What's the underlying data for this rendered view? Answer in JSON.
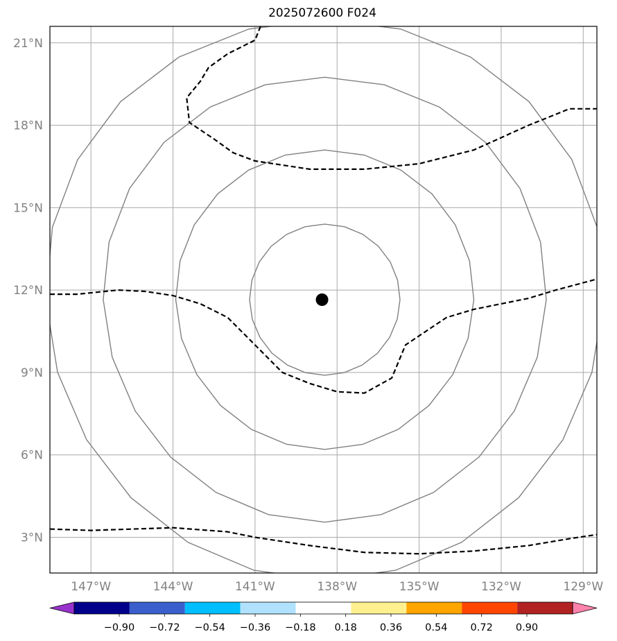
{
  "title": "2025072600 F024",
  "map": {
    "lon_range": [
      -148.5,
      -128.5
    ],
    "lat_range": [
      1.7,
      21.6
    ],
    "gridlines": {
      "lon": [
        -147,
        -144,
        -141,
        -138,
        -135,
        -132,
        -129
      ],
      "lat": [
        3,
        6,
        9,
        12,
        15,
        18,
        21
      ]
    },
    "lon_labels": [
      "147°W",
      "144°W",
      "141°W",
      "138°W",
      "135°W",
      "132°W",
      "129°W"
    ],
    "lat_labels": [
      "3°N",
      "6°N",
      "9°N",
      "12°N",
      "15°N",
      "18°N",
      "21°N"
    ],
    "center_marker": {
      "lon": -138.55,
      "lat": 11.65,
      "color": "#000000"
    },
    "range_rings": {
      "color": "#808080",
      "center": {
        "lon": -138.45,
        "lat": 11.65
      },
      "radii_deg": [
        2.75,
        5.45,
        8.1,
        10.2
      ]
    },
    "dashed_contours": [
      [
        [
          -148.5,
          11.85
        ],
        [
          -147.5,
          11.85
        ],
        [
          -146,
          12.0
        ],
        [
          -145,
          11.95
        ],
        [
          -144,
          11.8
        ],
        [
          -143,
          11.5
        ],
        [
          -142,
          11.0
        ],
        [
          -141,
          10.0
        ],
        [
          -140,
          9.0
        ],
        [
          -139,
          8.6
        ],
        [
          -138,
          8.3
        ],
        [
          -137,
          8.25
        ],
        [
          -136,
          8.8
        ],
        [
          -135.5,
          10.0
        ],
        [
          -134,
          11.0
        ],
        [
          -133,
          11.3
        ],
        [
          -131,
          11.7
        ],
        [
          -130,
          12.0
        ],
        [
          -128.5,
          12.4
        ]
      ],
      [
        [
          -140.8,
          21.6
        ],
        [
          -141,
          21.1
        ],
        [
          -142,
          20.6
        ],
        [
          -142.7,
          20.1
        ],
        [
          -143.0,
          19.6
        ],
        [
          -143.5,
          19.0
        ],
        [
          -143.4,
          18.1
        ],
        [
          -142.5,
          17.5
        ],
        [
          -141.8,
          17.0
        ],
        [
          -141,
          16.7
        ],
        [
          -139,
          16.4
        ],
        [
          -137,
          16.4
        ],
        [
          -135,
          16.6
        ],
        [
          -133,
          17.1
        ],
        [
          -131,
          18.0
        ],
        [
          -129.5,
          18.6
        ],
        [
          -128.5,
          18.6
        ]
      ],
      [
        [
          -148.5,
          3.3
        ],
        [
          -147,
          3.25
        ],
        [
          -144,
          3.35
        ],
        [
          -142,
          3.2
        ],
        [
          -141,
          3.0
        ],
        [
          -139,
          2.7
        ],
        [
          -137,
          2.45
        ],
        [
          -135,
          2.4
        ],
        [
          -133,
          2.5
        ],
        [
          -131,
          2.7
        ],
        [
          -129.5,
          2.95
        ],
        [
          -128.5,
          3.1
        ]
      ]
    ]
  },
  "colorbar": {
    "colors": [
      "#9932cc",
      "#00008b",
      "#3a5fcd",
      "#00bfff",
      "#b0e2ff",
      "#ffffff",
      "#fff08f",
      "#ffa500",
      "#ff4500",
      "#b22222",
      "#ff82ab"
    ],
    "tick_labels": [
      "−0.90",
      "−0.72",
      "−0.54",
      "−0.36",
      "−0.18",
      "0.18",
      "0.36",
      "0.54",
      "0.72",
      "0.90"
    ]
  }
}
